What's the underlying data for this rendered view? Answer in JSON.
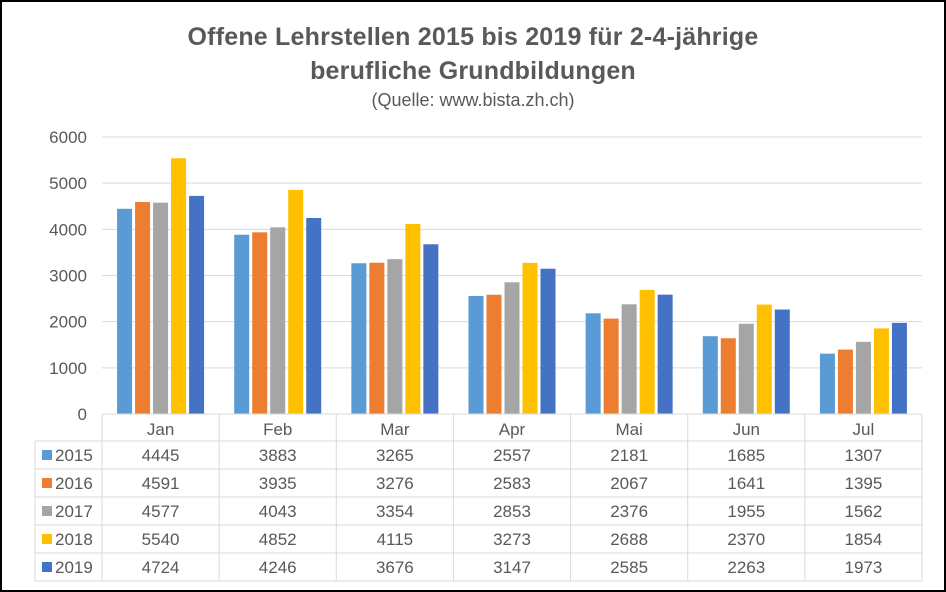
{
  "chart_data": {
    "type": "bar",
    "title": "Offene Lehrstellen 2015 bis 2019 für 2-4-jährige berufliche Grundbildungen",
    "title_lines": [
      "Offene Lehrstellen 2015 bis 2019 für 2-4-jährige",
      "berufliche Grundbildungen"
    ],
    "subtitle": "(Quelle: www.bista.zh.ch)",
    "xlabel": "",
    "ylabel": "",
    "categories": [
      "Jan",
      "Feb",
      "Mar",
      "Apr",
      "Mai",
      "Jun",
      "Jul"
    ],
    "ylim": [
      0,
      6000
    ],
    "yticks": [
      0,
      1000,
      2000,
      3000,
      4000,
      5000,
      6000
    ],
    "grid": true,
    "legend": "data-table-left",
    "series": [
      {
        "name": "2015",
        "color": "#5B9BD5",
        "values": [
          4445,
          3883,
          3265,
          2557,
          2181,
          1685,
          1307
        ]
      },
      {
        "name": "2016",
        "color": "#ED7D31",
        "values": [
          4591,
          3935,
          3276,
          2583,
          2067,
          1641,
          1395
        ]
      },
      {
        "name": "2017",
        "color": "#A5A5A5",
        "values": [
          4577,
          4043,
          3354,
          2853,
          2376,
          1955,
          1562
        ]
      },
      {
        "name": "2018",
        "color": "#FFC000",
        "values": [
          5540,
          4852,
          4115,
          3273,
          2688,
          2370,
          1854
        ]
      },
      {
        "name": "2019",
        "color": "#4472C4",
        "values": [
          4724,
          4246,
          3676,
          3147,
          2585,
          2263,
          1973
        ]
      }
    ]
  }
}
